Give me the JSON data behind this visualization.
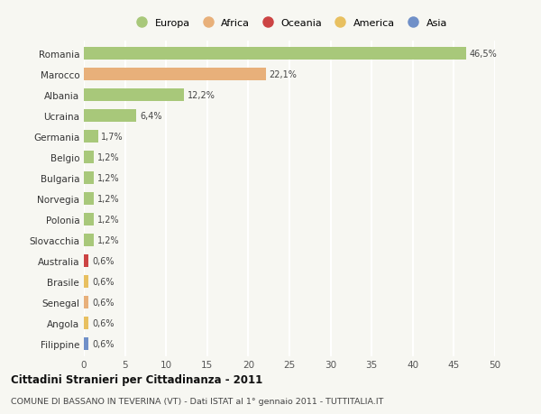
{
  "categories": [
    "Romania",
    "Marocco",
    "Albania",
    "Ucraina",
    "Germania",
    "Belgio",
    "Bulgaria",
    "Norvegia",
    "Polonia",
    "Slovacchia",
    "Australia",
    "Brasile",
    "Senegal",
    "Angola",
    "Filippine"
  ],
  "values": [
    46.5,
    22.1,
    12.2,
    6.4,
    1.7,
    1.2,
    1.2,
    1.2,
    1.2,
    1.2,
    0.6,
    0.6,
    0.6,
    0.6,
    0.6
  ],
  "labels": [
    "46,5%",
    "22,1%",
    "12,2%",
    "6,4%",
    "1,7%",
    "1,2%",
    "1,2%",
    "1,2%",
    "1,2%",
    "1,2%",
    "0,6%",
    "0,6%",
    "0,6%",
    "0,6%",
    "0,6%"
  ],
  "colors": [
    "#a8c87a",
    "#e8b07a",
    "#a8c87a",
    "#a8c87a",
    "#a8c87a",
    "#a8c87a",
    "#a8c87a",
    "#a8c87a",
    "#a8c87a",
    "#a8c87a",
    "#cc4444",
    "#e8c060",
    "#e8b07a",
    "#e8c060",
    "#7090c8"
  ],
  "continent_colors": {
    "Europa": "#a8c87a",
    "Africa": "#e8b07a",
    "Oceania": "#cc4444",
    "America": "#e8c060",
    "Asia": "#7090c8"
  },
  "legend_labels": [
    "Europa",
    "Africa",
    "Oceania",
    "America",
    "Asia"
  ],
  "xlim": [
    0,
    50
  ],
  "xticks": [
    0,
    5,
    10,
    15,
    20,
    25,
    30,
    35,
    40,
    45,
    50
  ],
  "title": "Cittadini Stranieri per Cittadinanza - 2011",
  "subtitle": "COMUNE DI BASSANO IN TEVERINA (VT) - Dati ISTAT al 1° gennaio 2011 - TUTTITALIA.IT",
  "bg_color": "#f7f7f2",
  "grid_color": "#ffffff",
  "bar_height": 0.6
}
